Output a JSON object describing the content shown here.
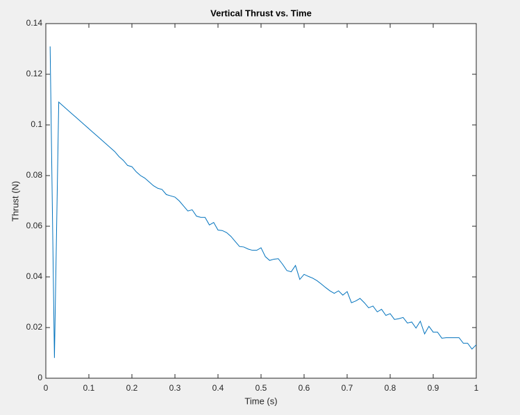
{
  "chart_data": {
    "type": "line",
    "title": "Vertical Thrust vs. Time",
    "x_label": "Time (s)",
    "y_label": "Thrust (N)",
    "x": [
      0.01,
      0.02,
      0.03,
      0.04,
      0.05,
      0.06,
      0.07,
      0.08,
      0.09,
      0.1,
      0.11,
      0.12,
      0.13,
      0.14,
      0.15,
      0.16,
      0.17,
      0.18,
      0.19,
      0.2,
      0.21,
      0.22,
      0.23,
      0.24,
      0.25,
      0.26,
      0.27,
      0.28,
      0.29,
      0.3,
      0.31,
      0.32,
      0.33,
      0.34,
      0.35,
      0.36,
      0.37,
      0.38,
      0.39,
      0.4,
      0.41,
      0.42,
      0.43,
      0.44,
      0.45,
      0.46,
      0.47,
      0.48,
      0.49,
      0.5,
      0.51,
      0.52,
      0.53,
      0.54,
      0.55,
      0.56,
      0.57,
      0.58,
      0.59,
      0.6,
      0.61,
      0.62,
      0.63,
      0.64,
      0.65,
      0.66,
      0.67,
      0.68,
      0.69,
      0.7,
      0.71,
      0.72,
      0.73,
      0.74,
      0.75,
      0.76,
      0.77,
      0.78,
      0.79,
      0.8,
      0.81,
      0.82,
      0.83,
      0.84,
      0.85,
      0.86,
      0.87,
      0.88,
      0.89,
      0.9,
      0.91,
      0.92,
      0.93,
      0.94,
      0.95,
      0.96,
      0.97,
      0.98,
      0.99,
      1
    ],
    "values": [
      0.131,
      0.008,
      0.109,
      0.1075,
      0.106,
      0.1045,
      0.103,
      0.1015,
      0.1,
      0.0985,
      0.097,
      0.0955,
      0.094,
      0.0925,
      0.091,
      0.0895,
      0.0875,
      0.086,
      0.084,
      0.0835,
      0.0815,
      0.08,
      0.079,
      0.0775,
      0.076,
      0.075,
      0.0745,
      0.0725,
      0.072,
      0.0715,
      0.07,
      0.068,
      0.066,
      0.0665,
      0.064,
      0.0635,
      0.0635,
      0.0605,
      0.0615,
      0.0585,
      0.0583,
      0.0575,
      0.056,
      0.054,
      0.052,
      0.0518,
      0.051,
      0.0505,
      0.0505,
      0.0515,
      0.048,
      0.0465,
      0.047,
      0.0472,
      0.045,
      0.0425,
      0.042,
      0.0445,
      0.039,
      0.041,
      0.0402,
      0.0395,
      0.0385,
      0.0372,
      0.0358,
      0.0345,
      0.0335,
      0.0345,
      0.0328,
      0.0342,
      0.0298,
      0.0305,
      0.0315,
      0.0298,
      0.0278,
      0.0285,
      0.0262,
      0.0272,
      0.0248,
      0.0255,
      0.0232,
      0.0235,
      0.024,
      0.0218,
      0.0222,
      0.0198,
      0.0225,
      0.0175,
      0.0205,
      0.0182,
      0.0182,
      0.0158,
      0.016,
      0.016,
      0.016,
      0.016,
      0.0138,
      0.0138,
      0.0115,
      0.0132
    ],
    "color": "#0072bd",
    "xlim": [
      0,
      1
    ],
    "xticks": [
      0,
      0.1,
      0.2,
      0.3,
      0.4,
      0.5,
      0.6,
      0.7,
      0.8,
      0.9,
      1
    ],
    "ylim": [
      0,
      0.14
    ],
    "yticks": [
      0,
      0.02,
      0.04,
      0.06,
      0.08,
      0.1,
      0.12,
      0.14
    ]
  }
}
